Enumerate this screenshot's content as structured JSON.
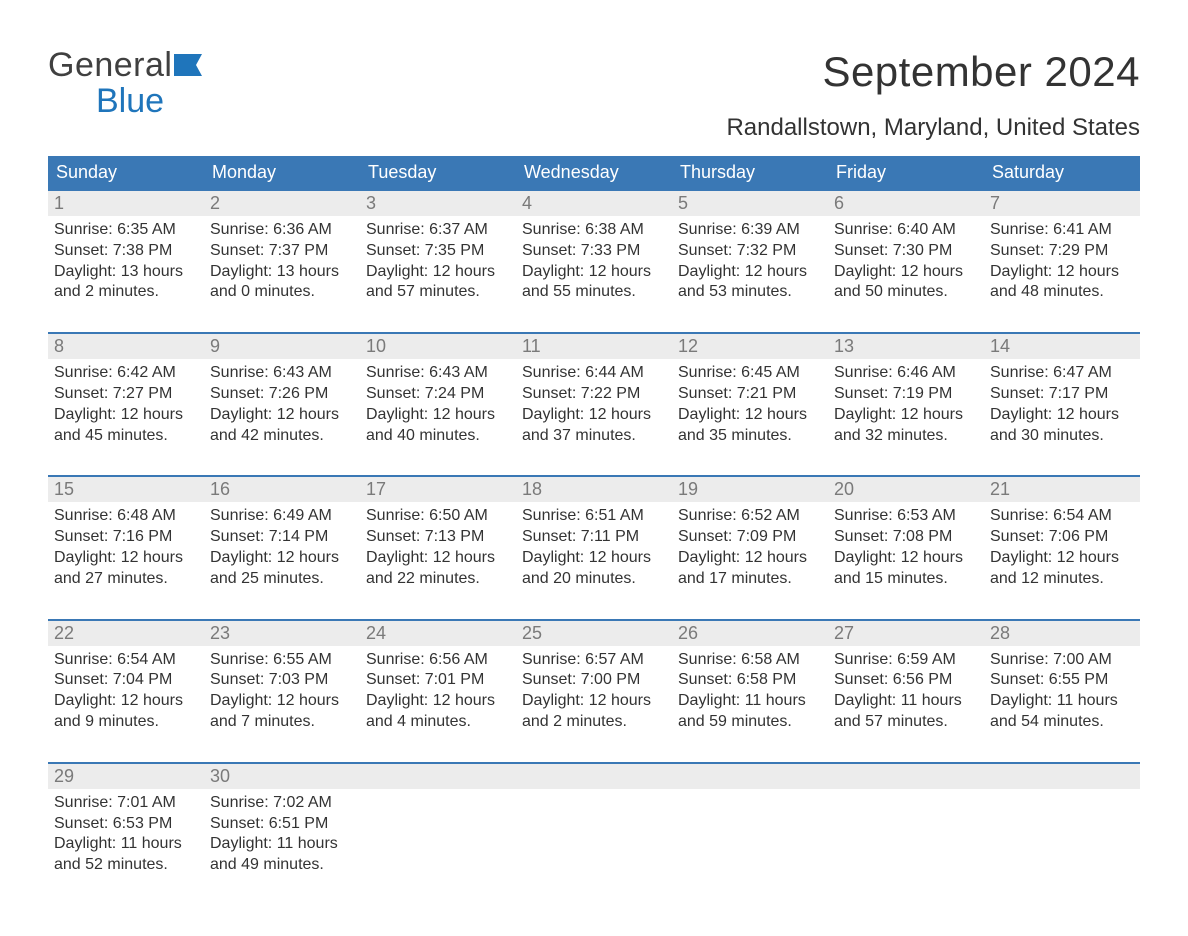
{
  "brand": {
    "word1": "General",
    "word2": "Blue",
    "flag_color": "#1f75bb"
  },
  "header": {
    "month_title": "September 2024",
    "location": "Randallstown, Maryland, United States"
  },
  "colors": {
    "header_bg": "#3a78b5",
    "header_text": "#ffffff",
    "daynum_bg": "#ececec",
    "daynum_text": "#7a7a7a",
    "cell_text": "#333333",
    "rule": "#3a78b5",
    "page_bg": "#ffffff"
  },
  "typography": {
    "month_title_fontsize": 42,
    "location_fontsize": 24,
    "header_fontsize": 18,
    "daynum_fontsize": 18,
    "body_fontsize": 16,
    "font_family": "Arial"
  },
  "calendar": {
    "columns": [
      "Sunday",
      "Monday",
      "Tuesday",
      "Wednesday",
      "Thursday",
      "Friday",
      "Saturday"
    ],
    "weeks": [
      [
        {
          "day": "1",
          "sunrise": "Sunrise: 6:35 AM",
          "sunset": "Sunset: 7:38 PM",
          "daylight1": "Daylight: 13 hours",
          "daylight2": "and 2 minutes."
        },
        {
          "day": "2",
          "sunrise": "Sunrise: 6:36 AM",
          "sunset": "Sunset: 7:37 PM",
          "daylight1": "Daylight: 13 hours",
          "daylight2": "and 0 minutes."
        },
        {
          "day": "3",
          "sunrise": "Sunrise: 6:37 AM",
          "sunset": "Sunset: 7:35 PM",
          "daylight1": "Daylight: 12 hours",
          "daylight2": "and 57 minutes."
        },
        {
          "day": "4",
          "sunrise": "Sunrise: 6:38 AM",
          "sunset": "Sunset: 7:33 PM",
          "daylight1": "Daylight: 12 hours",
          "daylight2": "and 55 minutes."
        },
        {
          "day": "5",
          "sunrise": "Sunrise: 6:39 AM",
          "sunset": "Sunset: 7:32 PM",
          "daylight1": "Daylight: 12 hours",
          "daylight2": "and 53 minutes."
        },
        {
          "day": "6",
          "sunrise": "Sunrise: 6:40 AM",
          "sunset": "Sunset: 7:30 PM",
          "daylight1": "Daylight: 12 hours",
          "daylight2": "and 50 minutes."
        },
        {
          "day": "7",
          "sunrise": "Sunrise: 6:41 AM",
          "sunset": "Sunset: 7:29 PM",
          "daylight1": "Daylight: 12 hours",
          "daylight2": "and 48 minutes."
        }
      ],
      [
        {
          "day": "8",
          "sunrise": "Sunrise: 6:42 AM",
          "sunset": "Sunset: 7:27 PM",
          "daylight1": "Daylight: 12 hours",
          "daylight2": "and 45 minutes."
        },
        {
          "day": "9",
          "sunrise": "Sunrise: 6:43 AM",
          "sunset": "Sunset: 7:26 PM",
          "daylight1": "Daylight: 12 hours",
          "daylight2": "and 42 minutes."
        },
        {
          "day": "10",
          "sunrise": "Sunrise: 6:43 AM",
          "sunset": "Sunset: 7:24 PM",
          "daylight1": "Daylight: 12 hours",
          "daylight2": "and 40 minutes."
        },
        {
          "day": "11",
          "sunrise": "Sunrise: 6:44 AM",
          "sunset": "Sunset: 7:22 PM",
          "daylight1": "Daylight: 12 hours",
          "daylight2": "and 37 minutes."
        },
        {
          "day": "12",
          "sunrise": "Sunrise: 6:45 AM",
          "sunset": "Sunset: 7:21 PM",
          "daylight1": "Daylight: 12 hours",
          "daylight2": "and 35 minutes."
        },
        {
          "day": "13",
          "sunrise": "Sunrise: 6:46 AM",
          "sunset": "Sunset: 7:19 PM",
          "daylight1": "Daylight: 12 hours",
          "daylight2": "and 32 minutes."
        },
        {
          "day": "14",
          "sunrise": "Sunrise: 6:47 AM",
          "sunset": "Sunset: 7:17 PM",
          "daylight1": "Daylight: 12 hours",
          "daylight2": "and 30 minutes."
        }
      ],
      [
        {
          "day": "15",
          "sunrise": "Sunrise: 6:48 AM",
          "sunset": "Sunset: 7:16 PM",
          "daylight1": "Daylight: 12 hours",
          "daylight2": "and 27 minutes."
        },
        {
          "day": "16",
          "sunrise": "Sunrise: 6:49 AM",
          "sunset": "Sunset: 7:14 PM",
          "daylight1": "Daylight: 12 hours",
          "daylight2": "and 25 minutes."
        },
        {
          "day": "17",
          "sunrise": "Sunrise: 6:50 AM",
          "sunset": "Sunset: 7:13 PM",
          "daylight1": "Daylight: 12 hours",
          "daylight2": "and 22 minutes."
        },
        {
          "day": "18",
          "sunrise": "Sunrise: 6:51 AM",
          "sunset": "Sunset: 7:11 PM",
          "daylight1": "Daylight: 12 hours",
          "daylight2": "and 20 minutes."
        },
        {
          "day": "19",
          "sunrise": "Sunrise: 6:52 AM",
          "sunset": "Sunset: 7:09 PM",
          "daylight1": "Daylight: 12 hours",
          "daylight2": "and 17 minutes."
        },
        {
          "day": "20",
          "sunrise": "Sunrise: 6:53 AM",
          "sunset": "Sunset: 7:08 PM",
          "daylight1": "Daylight: 12 hours",
          "daylight2": "and 15 minutes."
        },
        {
          "day": "21",
          "sunrise": "Sunrise: 6:54 AM",
          "sunset": "Sunset: 7:06 PM",
          "daylight1": "Daylight: 12 hours",
          "daylight2": "and 12 minutes."
        }
      ],
      [
        {
          "day": "22",
          "sunrise": "Sunrise: 6:54 AM",
          "sunset": "Sunset: 7:04 PM",
          "daylight1": "Daylight: 12 hours",
          "daylight2": "and 9 minutes."
        },
        {
          "day": "23",
          "sunrise": "Sunrise: 6:55 AM",
          "sunset": "Sunset: 7:03 PM",
          "daylight1": "Daylight: 12 hours",
          "daylight2": "and 7 minutes."
        },
        {
          "day": "24",
          "sunrise": "Sunrise: 6:56 AM",
          "sunset": "Sunset: 7:01 PM",
          "daylight1": "Daylight: 12 hours",
          "daylight2": "and 4 minutes."
        },
        {
          "day": "25",
          "sunrise": "Sunrise: 6:57 AM",
          "sunset": "Sunset: 7:00 PM",
          "daylight1": "Daylight: 12 hours",
          "daylight2": "and 2 minutes."
        },
        {
          "day": "26",
          "sunrise": "Sunrise: 6:58 AM",
          "sunset": "Sunset: 6:58 PM",
          "daylight1": "Daylight: 11 hours",
          "daylight2": "and 59 minutes."
        },
        {
          "day": "27",
          "sunrise": "Sunrise: 6:59 AM",
          "sunset": "Sunset: 6:56 PM",
          "daylight1": "Daylight: 11 hours",
          "daylight2": "and 57 minutes."
        },
        {
          "day": "28",
          "sunrise": "Sunrise: 7:00 AM",
          "sunset": "Sunset: 6:55 PM",
          "daylight1": "Daylight: 11 hours",
          "daylight2": "and 54 minutes."
        }
      ],
      [
        {
          "day": "29",
          "sunrise": "Sunrise: 7:01 AM",
          "sunset": "Sunset: 6:53 PM",
          "daylight1": "Daylight: 11 hours",
          "daylight2": "and 52 minutes."
        },
        {
          "day": "30",
          "sunrise": "Sunrise: 7:02 AM",
          "sunset": "Sunset: 6:51 PM",
          "daylight1": "Daylight: 11 hours",
          "daylight2": "and 49 minutes."
        },
        null,
        null,
        null,
        null,
        null
      ]
    ]
  }
}
